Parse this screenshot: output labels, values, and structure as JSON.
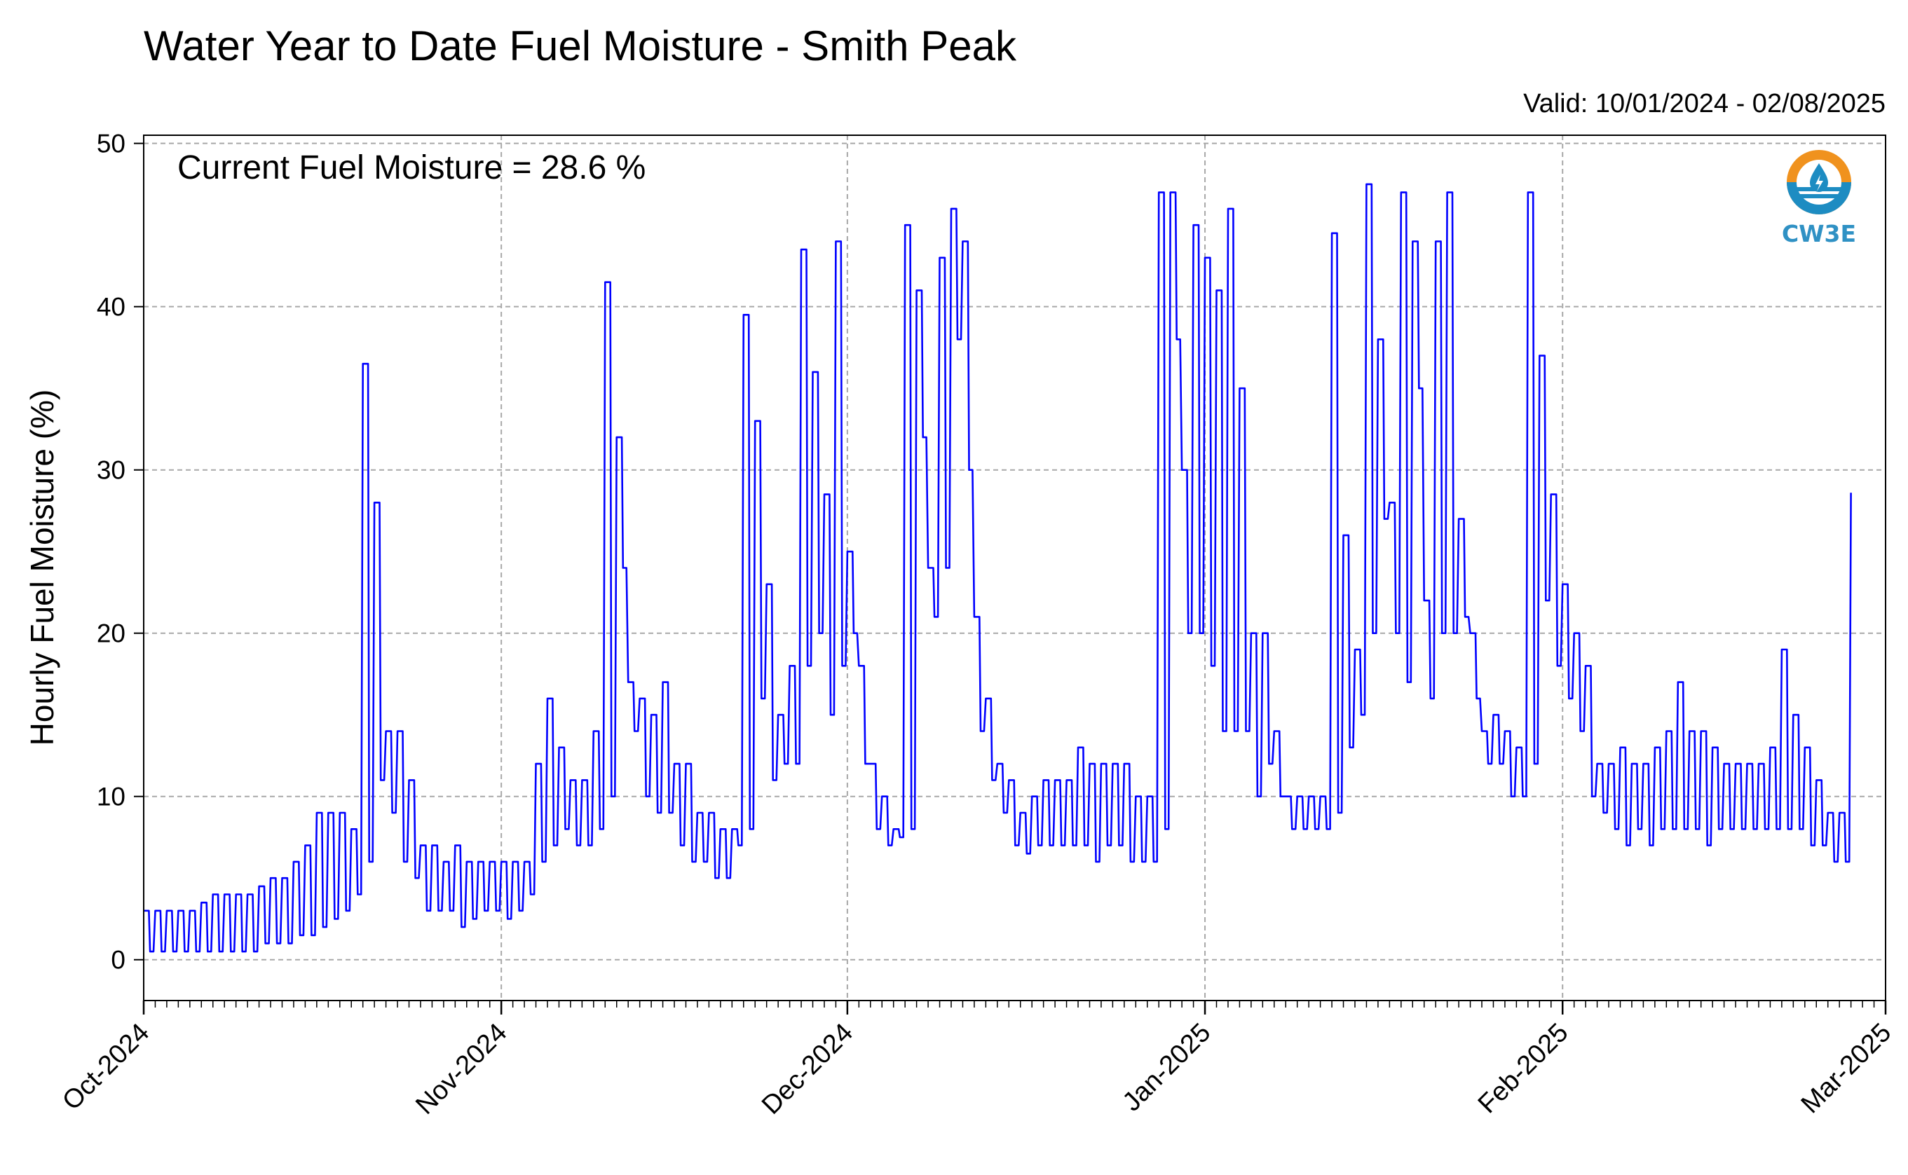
{
  "chart_data": {
    "type": "line",
    "title": "Water Year to Date Fuel Moisture - Smith Peak",
    "valid_text": "Valid: 10/01/2024 - 02/08/2025",
    "annotation": "Current Fuel Moisture = 28.6 %",
    "ylabel": "Hourly Fuel Moisture (%)",
    "xlabel": "",
    "ylim": [
      -2.5,
      50.5
    ],
    "yticks": [
      0,
      10,
      20,
      30,
      40,
      50
    ],
    "xlim": [
      "2024-10-01",
      "2025-03-01"
    ],
    "xticks": [
      "2024-10-01",
      "2024-11-01",
      "2024-12-01",
      "2025-01-01",
      "2025-02-01",
      "2025-03-01"
    ],
    "xtick_labels": [
      "Oct-2024",
      "Nov-2024",
      "Dec-2024",
      "Jan-2025",
      "Feb-2025",
      "Mar-2025"
    ],
    "minor_ticks": "daily",
    "grid": true,
    "grid_style": "dashed",
    "line_color": "#0000ff",
    "series": [
      {
        "values_note": "approximate daily minimum / maximum hourly fuel moisture (%), read off the chart",
        "daily": [
          [
            "2024-10-01",
            0.5,
            3
          ],
          [
            "2024-10-02",
            0.5,
            3
          ],
          [
            "2024-10-03",
            0.5,
            3
          ],
          [
            "2024-10-04",
            0.5,
            3
          ],
          [
            "2024-10-05",
            0.5,
            3
          ],
          [
            "2024-10-06",
            0.5,
            3.5
          ],
          [
            "2024-10-07",
            0.5,
            4
          ],
          [
            "2024-10-08",
            0.5,
            4
          ],
          [
            "2024-10-09",
            0.5,
            4
          ],
          [
            "2024-10-10",
            0.5,
            4
          ],
          [
            "2024-10-11",
            1,
            4.5
          ],
          [
            "2024-10-12",
            1,
            5
          ],
          [
            "2024-10-13",
            1,
            5
          ],
          [
            "2024-10-14",
            1.5,
            6
          ],
          [
            "2024-10-15",
            1.5,
            7
          ],
          [
            "2024-10-16",
            2,
            9
          ],
          [
            "2024-10-17",
            2.5,
            9
          ],
          [
            "2024-10-18",
            3,
            9
          ],
          [
            "2024-10-19",
            4,
            8
          ],
          [
            "2024-10-20",
            6,
            36.5
          ],
          [
            "2024-10-21",
            11,
            28
          ],
          [
            "2024-10-22",
            9,
            14
          ],
          [
            "2024-10-23",
            6,
            14
          ],
          [
            "2024-10-24",
            5,
            11
          ],
          [
            "2024-10-25",
            3,
            7
          ],
          [
            "2024-10-26",
            3,
            7
          ],
          [
            "2024-10-27",
            3,
            6
          ],
          [
            "2024-10-28",
            2,
            7
          ],
          [
            "2024-10-29",
            2.5,
            6
          ],
          [
            "2024-10-30",
            3,
            6
          ],
          [
            "2024-10-31",
            3,
            6
          ],
          [
            "2024-11-01",
            2.5,
            6
          ],
          [
            "2024-11-02",
            3,
            6
          ],
          [
            "2024-11-03",
            4,
            6
          ],
          [
            "2024-11-04",
            6,
            12
          ],
          [
            "2024-11-05",
            7,
            16
          ],
          [
            "2024-11-06",
            8,
            13
          ],
          [
            "2024-11-07",
            7,
            11
          ],
          [
            "2024-11-08",
            7,
            11
          ],
          [
            "2024-11-09",
            8,
            14
          ],
          [
            "2024-11-10",
            10,
            41.5
          ],
          [
            "2024-11-11",
            24,
            32
          ],
          [
            "2024-11-12",
            14,
            17
          ],
          [
            "2024-11-13",
            10,
            16
          ],
          [
            "2024-11-14",
            9,
            15
          ],
          [
            "2024-11-15",
            9,
            17
          ],
          [
            "2024-11-16",
            7,
            12
          ],
          [
            "2024-11-17",
            6,
            12
          ],
          [
            "2024-11-18",
            6,
            9
          ],
          [
            "2024-11-19",
            5,
            9
          ],
          [
            "2024-11-20",
            5,
            8
          ],
          [
            "2024-11-21",
            7,
            8
          ],
          [
            "2024-11-22",
            8,
            39.5
          ],
          [
            "2024-11-23",
            16,
            33
          ],
          [
            "2024-11-24",
            11,
            23
          ],
          [
            "2024-11-25",
            12,
            15
          ],
          [
            "2024-11-26",
            12,
            18
          ],
          [
            "2024-11-27",
            18,
            43.5
          ],
          [
            "2024-11-28",
            20,
            36
          ],
          [
            "2024-11-29",
            15,
            28.5
          ],
          [
            "2024-11-30",
            18,
            44
          ],
          [
            "2024-12-01",
            20,
            25
          ],
          [
            "2024-12-02",
            12,
            18
          ],
          [
            "2024-12-03",
            8,
            12
          ],
          [
            "2024-12-04",
            7,
            10
          ],
          [
            "2024-12-05",
            7.5,
            8
          ],
          [
            "2024-12-06",
            8,
            45
          ],
          [
            "2024-12-07",
            32,
            41
          ],
          [
            "2024-12-08",
            21,
            24
          ],
          [
            "2024-12-09",
            24,
            43
          ],
          [
            "2024-12-10",
            38,
            46
          ],
          [
            "2024-12-11",
            30,
            44
          ],
          [
            "2024-12-12",
            14,
            21
          ],
          [
            "2024-12-13",
            11,
            16
          ],
          [
            "2024-12-14",
            9,
            12
          ],
          [
            "2024-12-15",
            7,
            11
          ],
          [
            "2024-12-16",
            6.5,
            9
          ],
          [
            "2024-12-17",
            7,
            10
          ],
          [
            "2024-12-18",
            7,
            11
          ],
          [
            "2024-12-19",
            7,
            11
          ],
          [
            "2024-12-20",
            7,
            11
          ],
          [
            "2024-12-21",
            7,
            13
          ],
          [
            "2024-12-22",
            6,
            12
          ],
          [
            "2024-12-23",
            7,
            12
          ],
          [
            "2024-12-24",
            7,
            12
          ],
          [
            "2024-12-25",
            6,
            12
          ],
          [
            "2024-12-26",
            6,
            10
          ],
          [
            "2024-12-27",
            6,
            10
          ],
          [
            "2024-12-28",
            8,
            47
          ],
          [
            "2024-12-29",
            38,
            47
          ],
          [
            "2024-12-30",
            20,
            30
          ],
          [
            "2024-12-31",
            20,
            45
          ],
          [
            "2025-01-01",
            18,
            43
          ],
          [
            "2025-01-02",
            14,
            41
          ],
          [
            "2025-01-03",
            14,
            46
          ],
          [
            "2025-01-04",
            14,
            35
          ],
          [
            "2025-01-05",
            10,
            20
          ],
          [
            "2025-01-06",
            12,
            20
          ],
          [
            "2025-01-07",
            10,
            14
          ],
          [
            "2025-01-08",
            8,
            10
          ],
          [
            "2025-01-09",
            8,
            10
          ],
          [
            "2025-01-10",
            8,
            10
          ],
          [
            "2025-01-11",
            8,
            10
          ],
          [
            "2025-01-12",
            9,
            44.5
          ],
          [
            "2025-01-13",
            13,
            26
          ],
          [
            "2025-01-14",
            15,
            19
          ],
          [
            "2025-01-15",
            20,
            47.5
          ],
          [
            "2025-01-16",
            27,
            38
          ],
          [
            "2025-01-17",
            20,
            28
          ],
          [
            "2025-01-18",
            17,
            47
          ],
          [
            "2025-01-19",
            35,
            44
          ],
          [
            "2025-01-20",
            16,
            22
          ],
          [
            "2025-01-21",
            20,
            44
          ],
          [
            "2025-01-22",
            20,
            47
          ],
          [
            "2025-01-23",
            21,
            27
          ],
          [
            "2025-01-24",
            16,
            20
          ],
          [
            "2025-01-25",
            12,
            14
          ],
          [
            "2025-01-26",
            12,
            15
          ],
          [
            "2025-01-27",
            10,
            14
          ],
          [
            "2025-01-28",
            10,
            13
          ],
          [
            "2025-01-29",
            12,
            47
          ],
          [
            "2025-01-30",
            22,
            37
          ],
          [
            "2025-01-31",
            18,
            28.5
          ],
          [
            "2025-02-01",
            16,
            23
          ],
          [
            "2025-02-02",
            14,
            20
          ],
          [
            "2025-02-03",
            10,
            18
          ],
          [
            "2025-02-04",
            9,
            12
          ],
          [
            "2025-02-05",
            8,
            12
          ],
          [
            "2025-02-06",
            7,
            13
          ],
          [
            "2025-02-07",
            8,
            12
          ],
          [
            "2025-02-08",
            7,
            12
          ],
          [
            "2025-02-09",
            8,
            13
          ],
          [
            "2025-02-10",
            8,
            14
          ],
          [
            "2025-02-11",
            8,
            17
          ],
          [
            "2025-02-12",
            8,
            14
          ],
          [
            "2025-02-13",
            7,
            14
          ],
          [
            "2025-02-14",
            8,
            13
          ],
          [
            "2025-02-15",
            8,
            12
          ],
          [
            "2025-02-16",
            8,
            12
          ],
          [
            "2025-02-17",
            8,
            12
          ],
          [
            "2025-02-18",
            8,
            12
          ],
          [
            "2025-02-19",
            8,
            13
          ],
          [
            "2025-02-20",
            8,
            19
          ],
          [
            "2025-02-21",
            8,
            15
          ],
          [
            "2025-02-22",
            7,
            13
          ],
          [
            "2025-02-23",
            7,
            11
          ],
          [
            "2025-02-24",
            6,
            9
          ],
          [
            "2025-02-25",
            6,
            9
          ]
        ]
      }
    ]
  },
  "logo": {
    "text": "CW3E",
    "ring_top_color": "#f0921e",
    "ring_bottom_color": "#1d8cc2",
    "text_color": "#2f91c4",
    "icon": "water-drop-icon"
  }
}
